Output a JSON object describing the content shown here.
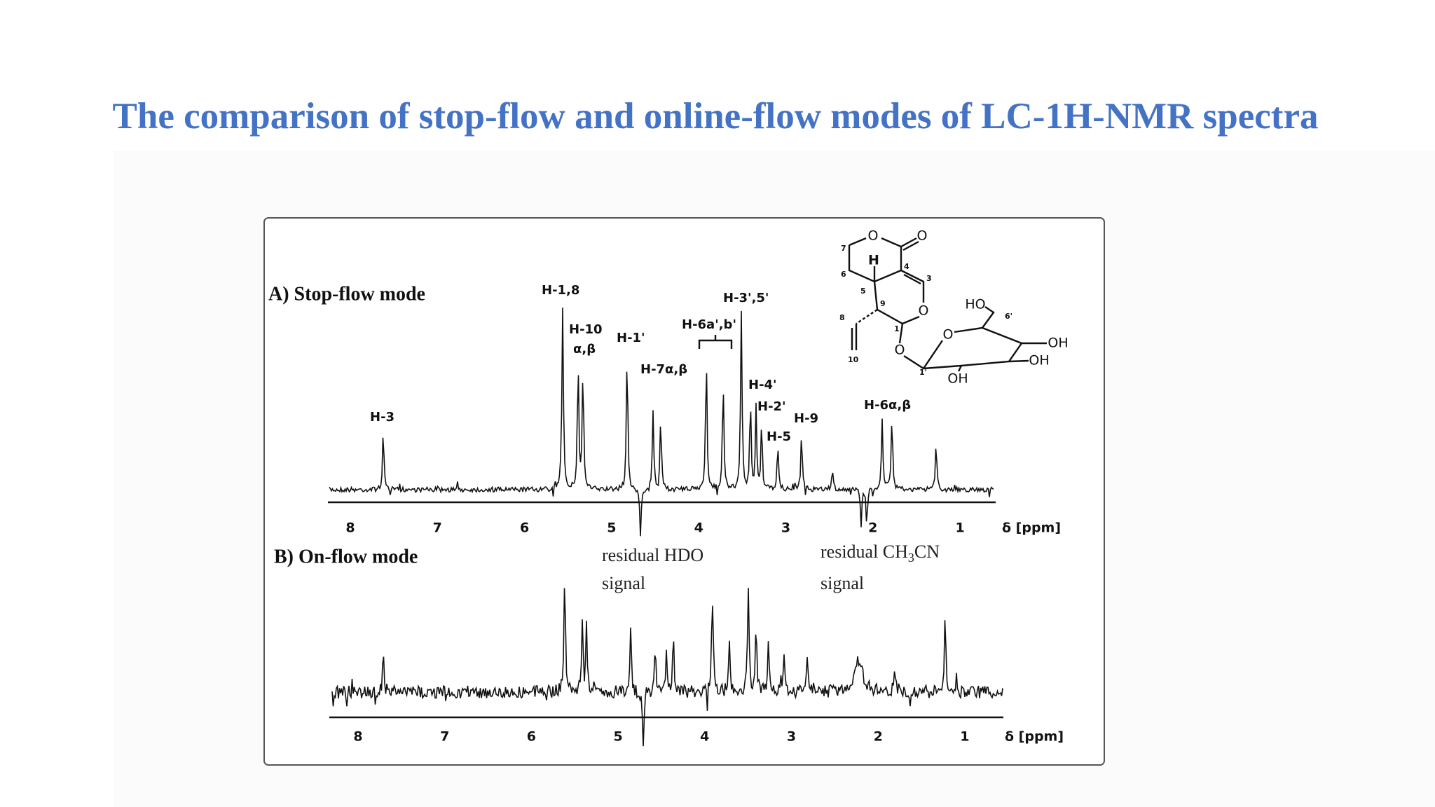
{
  "title": "The comparison of stop-flow and online-flow modes of LC-1H-NMR spectra",
  "figure": {
    "panel_a": {
      "label": "A) Stop-flow mode",
      "peak_labels": [
        "H-3",
        "H-1,8",
        "H-10",
        "α,β",
        "H-1'",
        "H-7α,β",
        "H-6a',b'",
        "H-3',5'",
        "H-4'",
        "H-2'",
        "H-5",
        "H-9",
        "H-6α,β"
      ],
      "axis_ticks": [
        "8",
        "7",
        "6",
        "5",
        "4",
        "3",
        "2",
        "1"
      ],
      "axis_unit": "δ [ppm]"
    },
    "panel_b": {
      "label": "B) On-flow mode",
      "axis_ticks": [
        "8",
        "7",
        "6",
        "5",
        "4",
        "3",
        "2",
        "1"
      ],
      "axis_unit": "δ [ppm]"
    },
    "annotations": {
      "hdo": [
        "residual HDO",
        "signal"
      ],
      "ch3cn": {
        "text": "residual CH",
        "subscript": "3",
        "suffix": "CN",
        "line2": "signal"
      }
    },
    "structure": {
      "atoms": [
        "O",
        "O",
        "H",
        "O",
        "O",
        "O",
        "HO",
        "OH",
        "OH",
        "OH"
      ],
      "numbers": [
        "7",
        "6",
        "5",
        "4",
        "3",
        "9",
        "1",
        "8",
        "10",
        "1'",
        "6'"
      ]
    }
  }
}
